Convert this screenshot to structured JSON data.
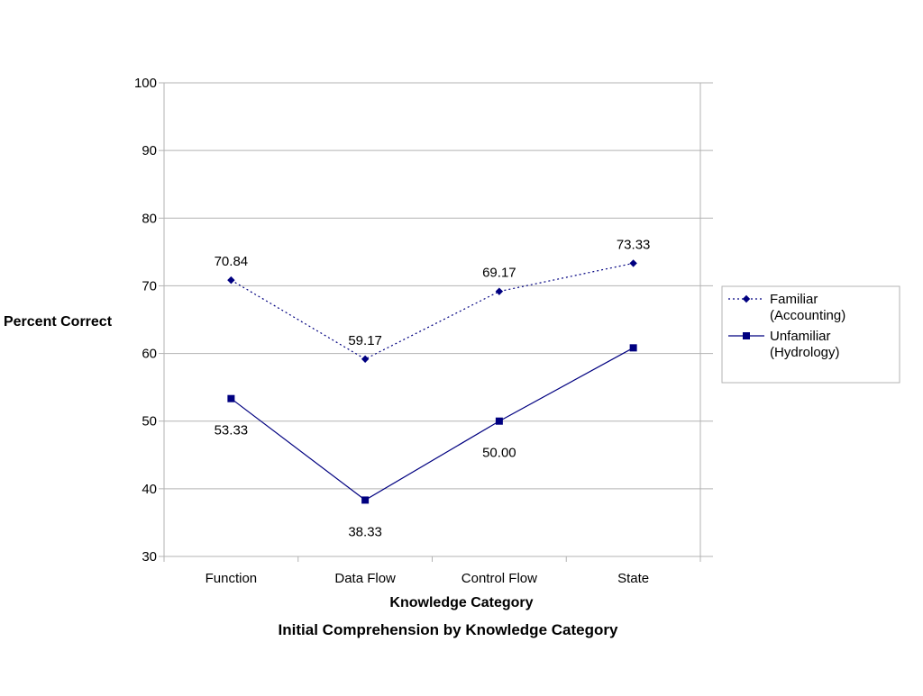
{
  "chart_data": {
    "type": "line",
    "title": "Initial Comprehension by Knowledge Category",
    "xlabel": "Knowledge Category",
    "ylabel": "Percent Correct",
    "categories": [
      "Function",
      "Data Flow",
      "Control Flow",
      "State"
    ],
    "ylim": [
      30,
      100
    ],
    "yticks": [
      30,
      40,
      50,
      60,
      70,
      80,
      90,
      100
    ],
    "grid": true,
    "legend_position": "right",
    "series": [
      {
        "name": "Familiar (Accounting)",
        "legend_lines": [
          "Familiar",
          "(Accounting)"
        ],
        "values": [
          70.84,
          59.17,
          69.17,
          73.33
        ],
        "labels": [
          "70.84",
          "59.17",
          "69.17",
          "73.33"
        ],
        "shown_labels": [
          true,
          true,
          true,
          true
        ],
        "label_side": "above",
        "marker": "diamond",
        "line_style": "dotted",
        "color": "#000080"
      },
      {
        "name": "Unfamiliar (Hydrology)",
        "legend_lines": [
          "Unfamiliar",
          "(Hydrology)"
        ],
        "values": [
          53.33,
          38.33,
          50.0,
          60.83
        ],
        "labels": [
          "53.33",
          "38.33",
          "50.00",
          ""
        ],
        "shown_labels": [
          true,
          true,
          true,
          false
        ],
        "label_side": "below",
        "marker": "square",
        "line_style": "solid",
        "color": "#000080"
      }
    ]
  }
}
